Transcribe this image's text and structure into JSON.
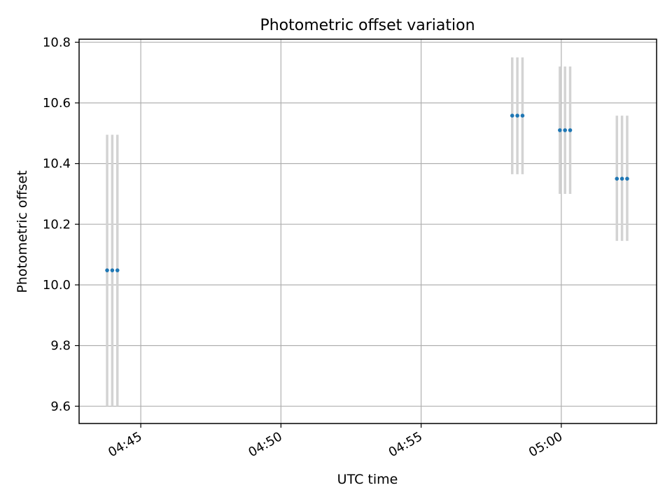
{
  "chart_data": {
    "type": "scatter",
    "title": "Photometric offset variation",
    "xlabel": "UTC time",
    "ylabel": "Photometric offset",
    "x_axis_type": "time",
    "xlim": [
      "04:42:48",
      "05:03:24"
    ],
    "ylim": [
      9.543,
      10.81
    ],
    "grid": true,
    "x_ticks": [
      "04:45",
      "04:50",
      "04:55",
      "05:00"
    ],
    "y_ticks": [
      "9.6",
      "9.8",
      "10.0",
      "10.2",
      "10.4",
      "10.6",
      "10.8"
    ],
    "colors": {
      "marker": "#1f77b4",
      "errorbar": "#d3d3d3",
      "grid": "#b0b0b0",
      "axes": "#000000"
    },
    "series": [
      {
        "points": [
          {
            "x": "04:43:48",
            "y": 10.048,
            "yerr_low": 9.6,
            "yerr_high": 10.495
          },
          {
            "x": "04:43:59",
            "y": 10.048,
            "yerr_low": 9.6,
            "yerr_high": 10.495
          },
          {
            "x": "04:44:10",
            "y": 10.048,
            "yerr_low": 9.6,
            "yerr_high": 10.495
          },
          {
            "x": "04:58:15",
            "y": 10.558,
            "yerr_low": 10.365,
            "yerr_high": 10.75
          },
          {
            "x": "04:58:26",
            "y": 10.558,
            "yerr_low": 10.365,
            "yerr_high": 10.75
          },
          {
            "x": "04:58:37",
            "y": 10.558,
            "yerr_low": 10.365,
            "yerr_high": 10.75
          },
          {
            "x": "04:59:57",
            "y": 10.51,
            "yerr_low": 10.3,
            "yerr_high": 10.72
          },
          {
            "x": "05:00:08",
            "y": 10.51,
            "yerr_low": 10.3,
            "yerr_high": 10.72
          },
          {
            "x": "05:00:19",
            "y": 10.51,
            "yerr_low": 10.3,
            "yerr_high": 10.72
          },
          {
            "x": "05:01:59",
            "y": 10.35,
            "yerr_low": 10.145,
            "yerr_high": 10.558
          },
          {
            "x": "05:02:10",
            "y": 10.35,
            "yerr_low": 10.145,
            "yerr_high": 10.558
          },
          {
            "x": "05:02:21",
            "y": 10.35,
            "yerr_low": 10.145,
            "yerr_high": 10.558
          }
        ]
      }
    ]
  }
}
